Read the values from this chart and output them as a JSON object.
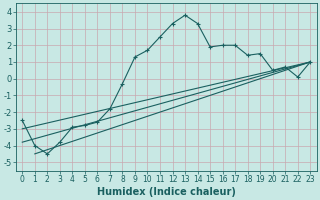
{
  "xlabel": "Humidex (Indice chaleur)",
  "xlim": [
    -0.5,
    23.5
  ],
  "ylim": [
    -5.5,
    4.5
  ],
  "xticks": [
    0,
    1,
    2,
    3,
    4,
    5,
    6,
    7,
    8,
    9,
    10,
    11,
    12,
    13,
    14,
    15,
    16,
    17,
    18,
    19,
    20,
    21,
    22,
    23
  ],
  "yticks": [
    -5,
    -4,
    -3,
    -2,
    -1,
    0,
    1,
    2,
    3,
    4
  ],
  "bg_color": "#c8e8e4",
  "grid_color": "#c8a8b0",
  "line_color": "#1a6060",
  "line1_x": [
    0,
    1,
    2,
    3,
    4,
    5,
    6,
    7,
    8,
    9,
    10,
    11,
    12,
    13,
    14,
    15,
    16,
    17,
    18,
    19,
    20,
    21,
    22,
    23
  ],
  "line1_y": [
    -2.5,
    -4.0,
    -4.5,
    -3.8,
    -2.9,
    -2.8,
    -2.6,
    -1.8,
    -0.3,
    1.3,
    1.7,
    2.5,
    3.3,
    3.8,
    3.3,
    1.9,
    2.0,
    2.0,
    1.4,
    1.5,
    0.5,
    0.7,
    0.1,
    1.0
  ],
  "line2_x": [
    0,
    23
  ],
  "line2_y": [
    -3.8,
    1.0
  ],
  "line3_x": [
    1,
    23
  ],
  "line3_y": [
    -4.5,
    1.0
  ],
  "line4_x": [
    0,
    23
  ],
  "line4_y": [
    -3.0,
    1.0
  ],
  "line_width": 0.8,
  "marker_size": 3.5,
  "tick_fontsize": 5.5,
  "xlabel_fontsize": 7
}
